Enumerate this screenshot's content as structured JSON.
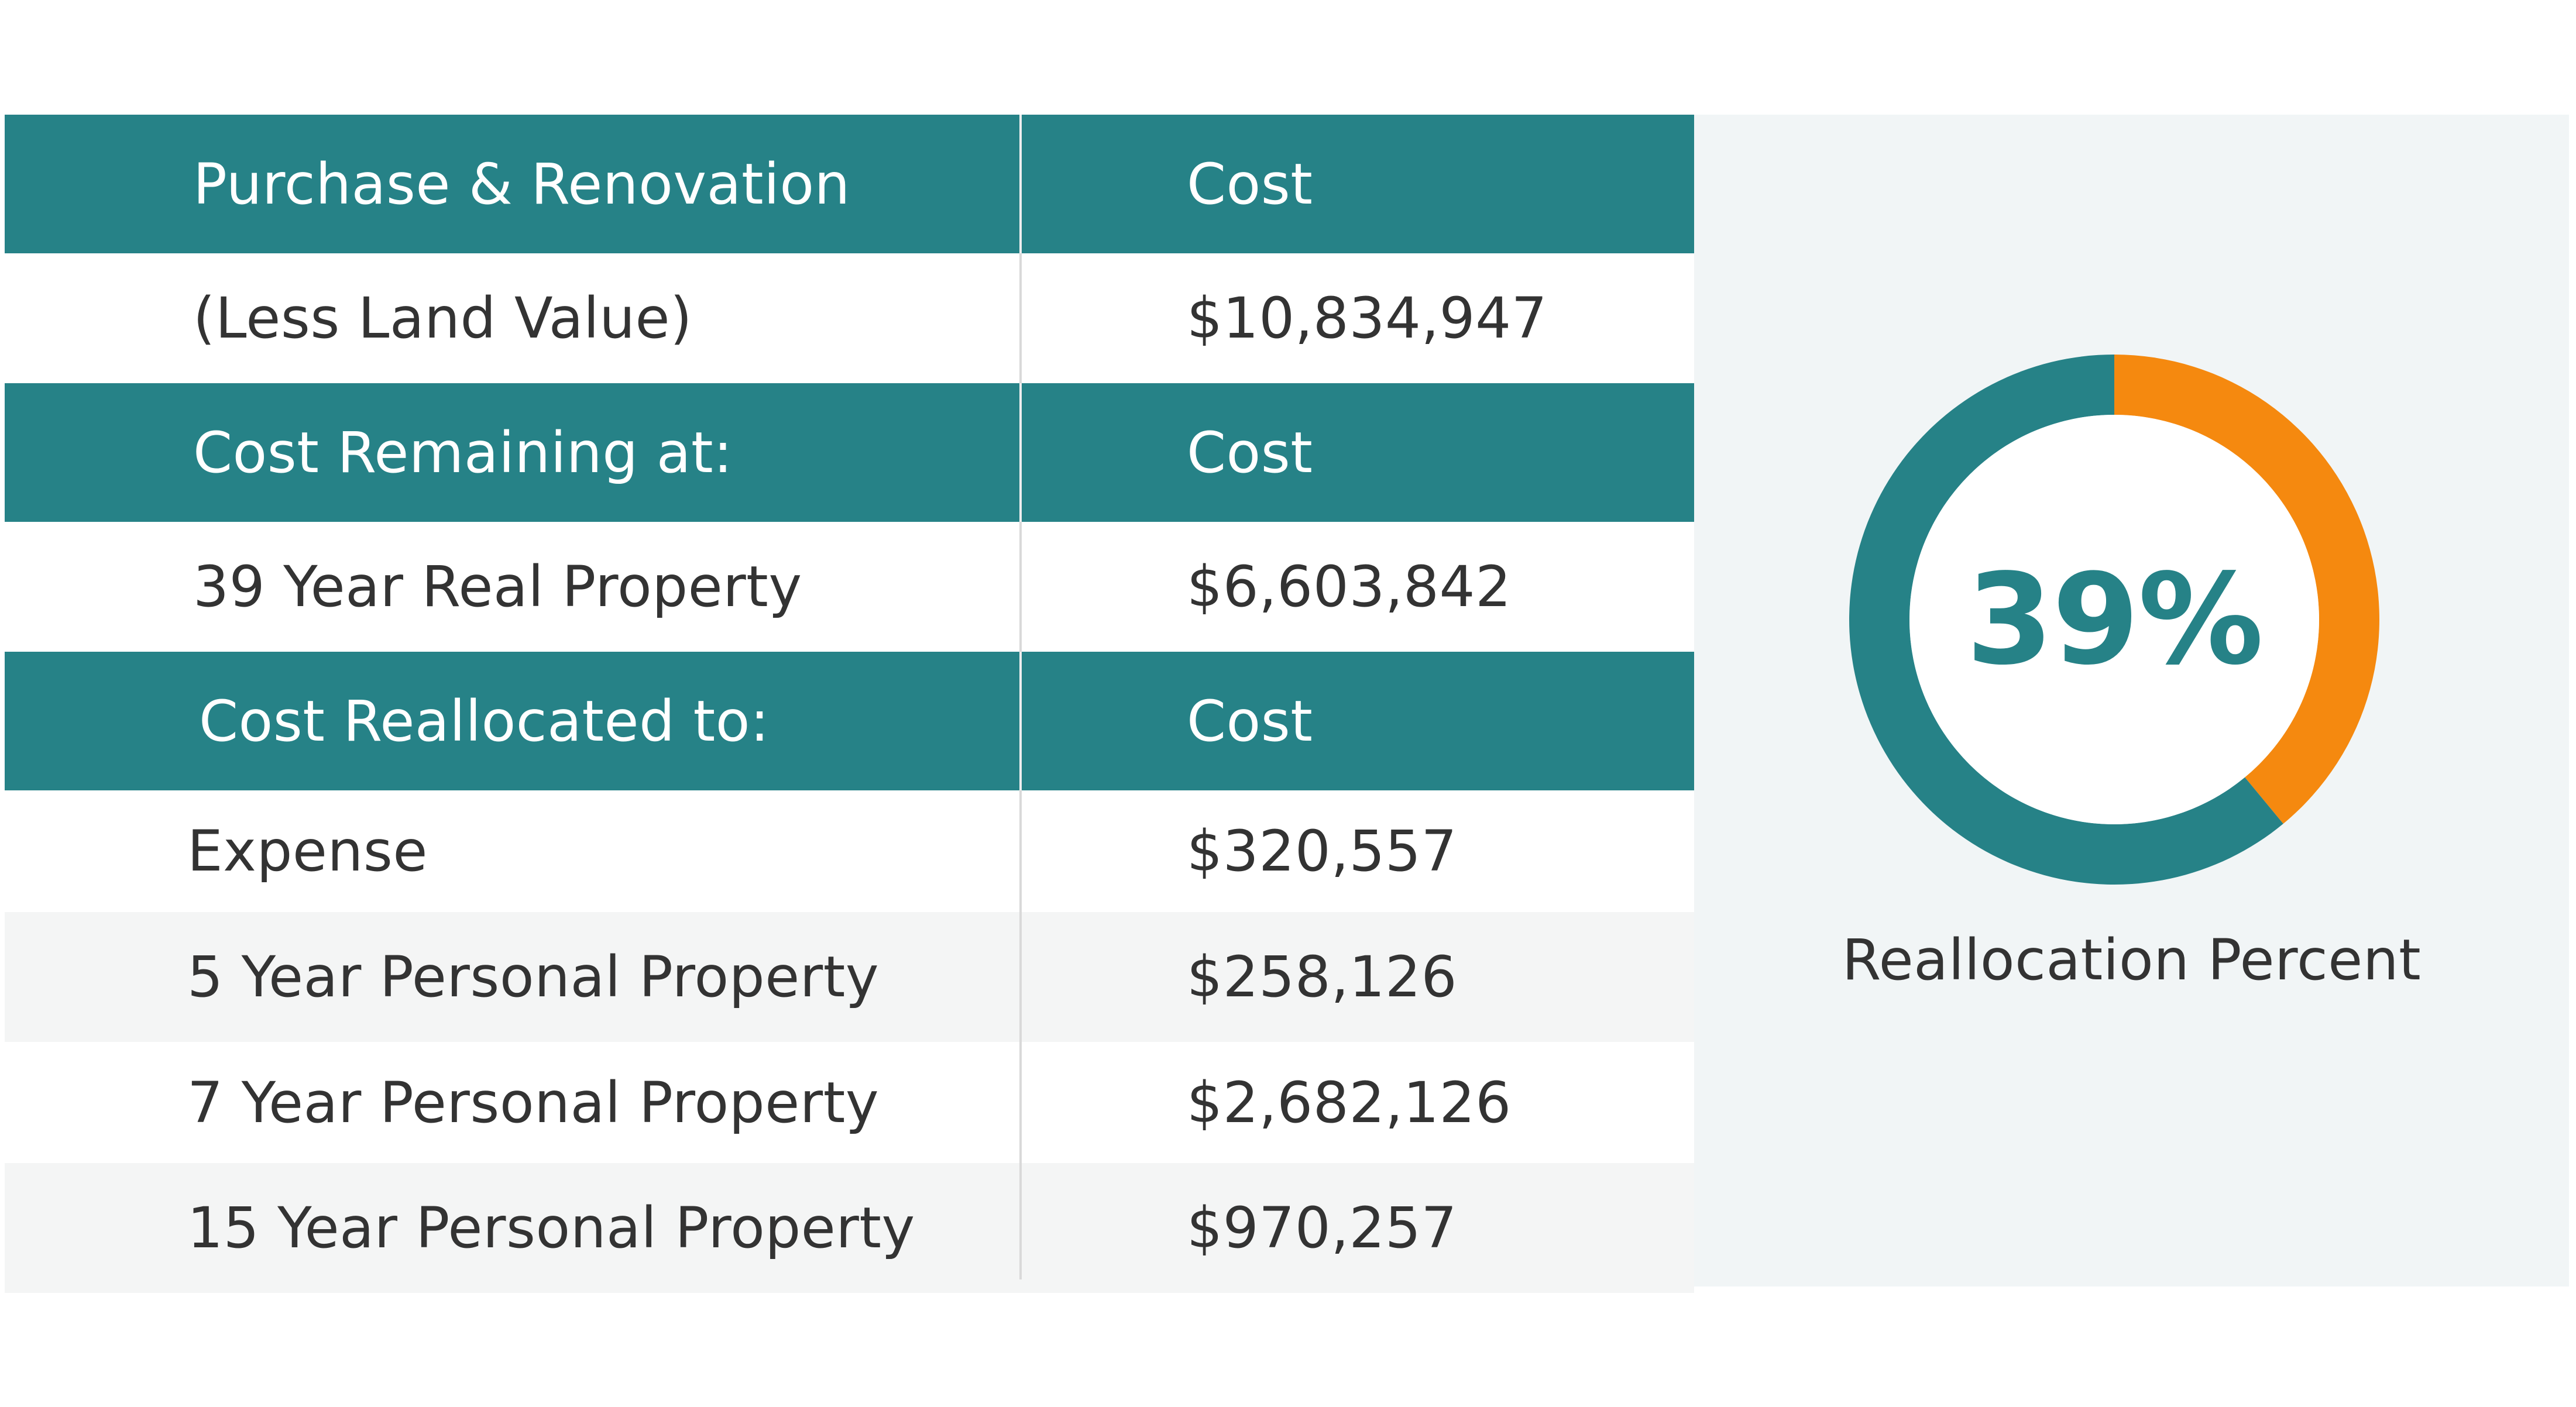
{
  "colors": {
    "header_teal": "#268287",
    "accent_orange": "#f5890f",
    "panel_bg": "#f1f5f6",
    "text": "#333333"
  },
  "sections": [
    {
      "header": {
        "label": "Purchase & Renovation",
        "cost": "Cost"
      },
      "rows": [
        {
          "label": "(Less Land Value)",
          "cost": "$10,834,947"
        }
      ]
    },
    {
      "header": {
        "label": "Cost Remaining at:",
        "cost": "Cost"
      },
      "rows": [
        {
          "label": "39 Year Real Property",
          "cost": "$6,603,842"
        }
      ]
    },
    {
      "header": {
        "label": "Cost Reallocated to:",
        "cost": "Cost"
      },
      "rows": [
        {
          "label": "Expense",
          "cost": "$320,557"
        },
        {
          "label": "5 Year Personal Property",
          "cost": "$258,126"
        },
        {
          "label": "7 Year Personal Property",
          "cost": "$2,682,126"
        },
        {
          "label": "15 Year Personal Property",
          "cost": "$970,257"
        }
      ]
    }
  ],
  "chart_data": {
    "type": "pie",
    "variant": "donut",
    "center_label": "39%",
    "caption": "Reallocation Percent",
    "slices": [
      {
        "value": 39,
        "color": "#f5890f"
      },
      {
        "value": 61,
        "color": "#268287"
      }
    ]
  }
}
